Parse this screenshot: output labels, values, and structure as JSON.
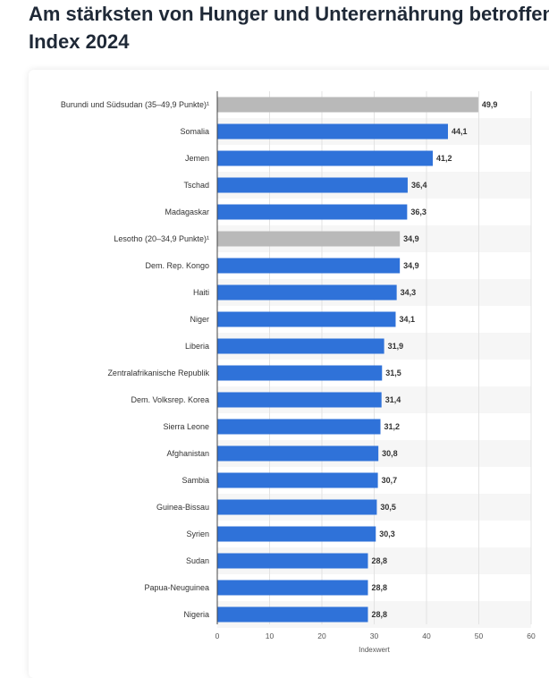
{
  "page": {
    "title_line1": "Am stärksten von Hunger und Unterernährung betroffen",
    "title_line2": "Index 2024"
  },
  "colors": {
    "bar_primary": "#2f72d9",
    "bar_secondary": "#b9b9b9",
    "grid": "#e3e3e3",
    "row_stripe": "#f6f6f6",
    "axis": "#444444"
  },
  "chart_data": {
    "type": "bar",
    "orientation": "horizontal",
    "categories": [
      "Burundi und Südsudan (35–49,9 Punkte)¹",
      "Somalia",
      "Jemen",
      "Tschad",
      "Madagaskar",
      "Lesotho (20–34,9 Punkte)¹",
      "Dem. Rep. Kongo",
      "Haiti",
      "Niger",
      "Liberia",
      "Zentralafrikanische Republik",
      "Dem. Volksrep. Korea",
      "Sierra Leone",
      "Afghanistan",
      "Sambia",
      "Guinea-Bissau",
      "Syrien",
      "Sudan",
      "Papua-Neuguinea",
      "Nigeria"
    ],
    "values": [
      49.9,
      44.1,
      41.2,
      36.4,
      36.3,
      34.9,
      34.9,
      34.3,
      34.1,
      31.9,
      31.5,
      31.4,
      31.2,
      30.8,
      30.7,
      30.5,
      30.3,
      28.8,
      28.8,
      28.8
    ],
    "value_labels": [
      "49,9",
      "44,1",
      "41,2",
      "36,4",
      "36,3",
      "34,9",
      "34,9",
      "34,3",
      "34,1",
      "31,9",
      "31,5",
      "31,4",
      "31,2",
      "30,8",
      "30,7",
      "30,5",
      "30,3",
      "28,8",
      "28,8",
      "28,8"
    ],
    "highlight_secondary": [
      0,
      5
    ],
    "xlabel": "Indexwert",
    "ylabel": "",
    "xlim": [
      0,
      60
    ],
    "ticks": [
      0,
      10,
      20,
      30,
      40,
      50,
      60
    ],
    "grid": true
  }
}
